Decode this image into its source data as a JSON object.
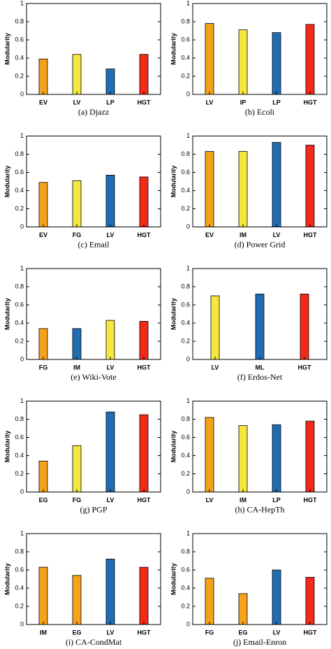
{
  "chart_data": [
    {
      "type": "bar",
      "title": "(a) Djazz",
      "ylabel": "Modularity",
      "categories": [
        "EV",
        "LV",
        "LP",
        "HGT"
      ],
      "values": [
        0.39,
        0.44,
        0.28,
        0.44
      ],
      "colors": [
        "#f7a21b",
        "#f6e73e",
        "#1f6db3",
        "#f5291a"
      ],
      "ylim": [
        0,
        1
      ],
      "yticks": [
        0,
        0.2,
        0.4,
        0.6,
        0.8,
        1
      ]
    },
    {
      "type": "bar",
      "title": "(b) Ecoli",
      "ylabel": "Modularity",
      "categories": [
        "LV",
        "IP",
        "LP",
        "HGT"
      ],
      "values": [
        0.78,
        0.71,
        0.68,
        0.77
      ],
      "colors": [
        "#f7a21b",
        "#f6e73e",
        "#1f6db3",
        "#f5291a"
      ],
      "ylim": [
        0,
        1
      ],
      "yticks": [
        0,
        0.2,
        0.4,
        0.6,
        0.8,
        1
      ]
    },
    {
      "type": "bar",
      "title": "(c) Email",
      "ylabel": "Modularity",
      "categories": [
        "EV",
        "FG",
        "LV",
        "HGT"
      ],
      "values": [
        0.49,
        0.51,
        0.57,
        0.55
      ],
      "colors": [
        "#f7a21b",
        "#f6e73e",
        "#1f6db3",
        "#f5291a"
      ],
      "ylim": [
        0,
        1
      ],
      "yticks": [
        0,
        0.2,
        0.4,
        0.6,
        0.8,
        1
      ]
    },
    {
      "type": "bar",
      "title": "(d) Power Grid",
      "ylabel": "Modularity",
      "categories": [
        "EV",
        "IM",
        "LV",
        "HGT"
      ],
      "values": [
        0.83,
        0.83,
        0.93,
        0.9
      ],
      "colors": [
        "#f7a21b",
        "#f6e73e",
        "#1f6db3",
        "#f5291a"
      ],
      "ylim": [
        0,
        1
      ],
      "yticks": [
        0,
        0.2,
        0.4,
        0.6,
        0.8,
        1
      ]
    },
    {
      "type": "bar",
      "title": "(e) Wiki-Vote",
      "ylabel": "Modularity",
      "categories": [
        "FG",
        "IM",
        "LV",
        "HGT"
      ],
      "values": [
        0.34,
        0.34,
        0.43,
        0.42
      ],
      "colors": [
        "#f7a21b",
        "#1f6db3",
        "#f6e73e",
        "#f5291a"
      ],
      "ylim": [
        0,
        1
      ],
      "yticks": [
        0,
        0.2,
        0.4,
        0.6,
        0.8,
        1
      ]
    },
    {
      "type": "bar",
      "title": "(f) Erdos-Net",
      "ylabel": "Modularity",
      "categories": [
        "LV",
        "ML",
        "HGT"
      ],
      "values": [
        0.7,
        0.72,
        0.72
      ],
      "colors": [
        "#f6e73e",
        "#1f6db3",
        "#f5291a"
      ],
      "ylim": [
        0,
        1
      ],
      "yticks": [
        0,
        0.2,
        0.4,
        0.6,
        0.8,
        1
      ]
    },
    {
      "type": "bar",
      "title": "(g) PGP",
      "ylabel": "Modularity",
      "categories": [
        "EG",
        "FG",
        "LV",
        "HGT"
      ],
      "values": [
        0.34,
        0.51,
        0.88,
        0.85
      ],
      "colors": [
        "#f7a21b",
        "#f6e73e",
        "#1f6db3",
        "#f5291a"
      ],
      "ylim": [
        0,
        1
      ],
      "yticks": [
        0,
        0.2,
        0.4,
        0.6,
        0.8,
        1
      ]
    },
    {
      "type": "bar",
      "title": "(h) CA-HepTh",
      "ylabel": "Modularity",
      "categories": [
        "LV",
        "IM",
        "LP",
        "HGT"
      ],
      "values": [
        0.82,
        0.73,
        0.74,
        0.78
      ],
      "colors": [
        "#f7a21b",
        "#f6e73e",
        "#1f6db3",
        "#f5291a"
      ],
      "ylim": [
        0,
        1
      ],
      "yticks": [
        0,
        0.2,
        0.4,
        0.6,
        0.8,
        1
      ]
    },
    {
      "type": "bar",
      "title": "(i) CA-CondMat",
      "ylabel": "Modularity",
      "categories": [
        "IM",
        "EG",
        "LV",
        "HGT"
      ],
      "values": [
        0.63,
        0.54,
        0.72,
        0.63
      ],
      "colors": [
        "#f7a21b",
        "#f7a21b",
        "#1f6db3",
        "#f5291a"
      ],
      "ylim": [
        0,
        1
      ],
      "yticks": [
        0,
        0.2,
        0.4,
        0.6,
        0.8,
        1
      ]
    },
    {
      "type": "bar",
      "title": "(j) Email-Enron",
      "ylabel": "Modularity",
      "categories": [
        "FG",
        "EG",
        "LV",
        "HGT"
      ],
      "values": [
        0.51,
        0.34,
        0.6,
        0.52
      ],
      "colors": [
        "#f7a21b",
        "#f7a21b",
        "#1f6db3",
        "#f5291a"
      ],
      "ylim": [
        0,
        1
      ],
      "yticks": [
        0,
        0.2,
        0.4,
        0.6,
        0.8,
        1
      ]
    }
  ]
}
